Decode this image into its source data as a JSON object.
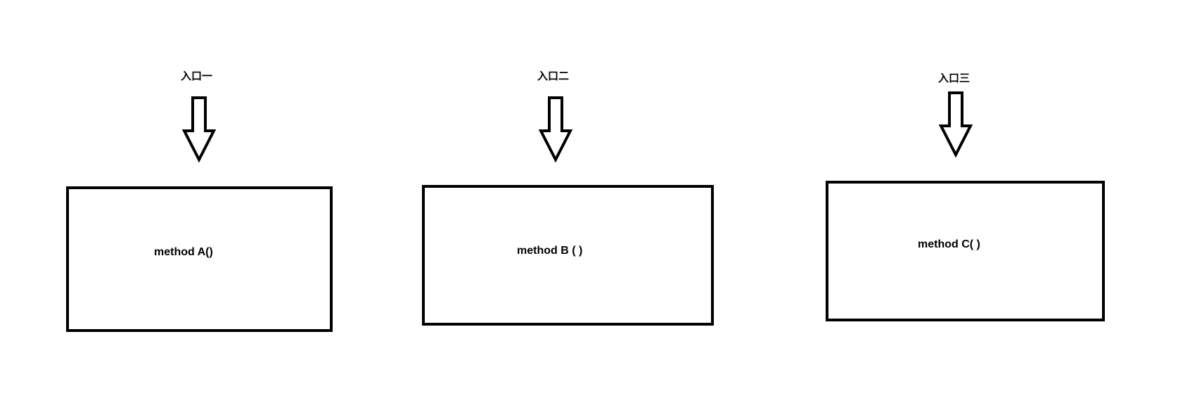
{
  "diagram": {
    "entries": [
      {
        "entry_label": "入口一",
        "method_label": "method A()"
      },
      {
        "entry_label": "入口二",
        "method_label": "method B ( )"
      },
      {
        "entry_label": "入口三",
        "method_label": "method C( )"
      }
    ],
    "colors": {
      "stroke": "#000000",
      "background": "#ffffff"
    },
    "icons": {
      "arrow": "down-arrow-icon"
    }
  }
}
